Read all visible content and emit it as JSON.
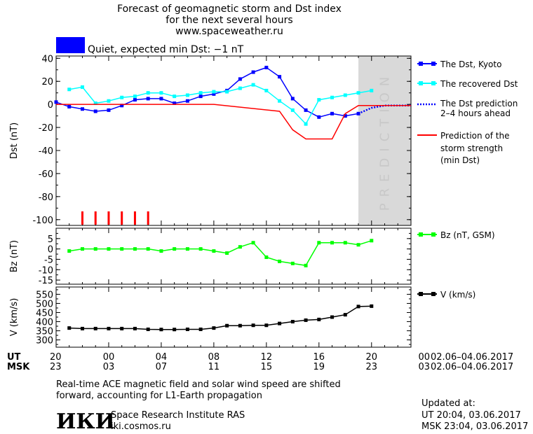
{
  "header": {
    "line1": "Forecast of geomagnetic storm and Dst index",
    "line2": "for the next several hours",
    "url": "www.spaceweather.ru"
  },
  "status": {
    "color": "#0000ff",
    "text": "Quiet, expected min Dst: −1 nT"
  },
  "colors": {
    "dst_kyoto": "#0000ff",
    "dst_recovered": "#00ffff",
    "prediction": "#ff0000",
    "bz": "#00ff00",
    "v": "#000000",
    "prediction_zone": "#d9d9d9"
  },
  "prediction_label": "PREDICTION",
  "chart_data": [
    {
      "type": "line",
      "ylabel": "Dst (nT)",
      "ylim": [
        -105,
        42
      ],
      "yticks": [
        40,
        20,
        0,
        -20,
        -40,
        -60,
        -80,
        -100
      ],
      "xlim": [
        20,
        47
      ],
      "prediction_zone_x": [
        43,
        47
      ],
      "series": [
        {
          "name": "The Dst, Kyoto",
          "color": "#0000ff",
          "x": [
            20,
            21,
            22,
            23,
            24,
            25,
            26,
            27,
            28,
            29,
            30,
            31,
            32,
            33,
            34,
            35,
            36,
            37,
            38,
            39,
            40,
            41,
            42,
            43
          ],
          "y": [
            2,
            -2,
            -4,
            -6,
            -5,
            -1,
            4,
            5,
            5,
            1,
            3,
            7,
            9,
            12,
            22,
            28,
            32,
            24,
            5,
            -5,
            -11,
            -8,
            -10,
            -8
          ]
        },
        {
          "name": "The recovered Dst",
          "color": "#00ffff",
          "x": [
            21,
            22,
            23,
            24,
            25,
            26,
            27,
            28,
            29,
            30,
            31,
            32,
            33,
            34,
            35,
            36,
            37,
            38,
            39,
            40,
            41,
            42,
            43,
            44
          ],
          "y": [
            13,
            15,
            1,
            3,
            6,
            7,
            10,
            10,
            7,
            8,
            10,
            11,
            11,
            14,
            17,
            12,
            3,
            -5,
            -17,
            4,
            6,
            8,
            10,
            12
          ]
        },
        {
          "name": "The Dst prediction 2-4 hours ahead",
          "color": "#0000ff",
          "dotted": true,
          "x": [
            43,
            44,
            45,
            46,
            47
          ],
          "y": [
            -8,
            -3,
            -1,
            -1,
            -1
          ]
        },
        {
          "name": "Prediction of the storm strength (min Dst)",
          "color": "#ff0000",
          "x": [
            20,
            32,
            37,
            38,
            39,
            40,
            41,
            42,
            43,
            47
          ],
          "y": [
            0,
            0,
            -6,
            -22,
            -30,
            -30,
            -30,
            -8,
            -1,
            -1
          ]
        }
      ],
      "red_bars_x": [
        22,
        23,
        24,
        25,
        26,
        27
      ],
      "legend": [
        {
          "label1": "The Dst, Kyoto",
          "label2": "",
          "label3": ""
        },
        {
          "label1": "The recovered Dst",
          "label2": "",
          "label3": ""
        },
        {
          "label1": "The Dst prediction",
          "label2": "2–4 hours ahead",
          "label3": ""
        },
        {
          "label1": "Prediction of the",
          "label2": "storm strength",
          "label3": "(min Dst)"
        }
      ]
    },
    {
      "type": "line",
      "ylabel": "Bz (nT)",
      "ylim": [
        -17,
        10
      ],
      "yticks": [
        5,
        0,
        -5,
        -10,
        -15
      ],
      "xlim": [
        20,
        47
      ],
      "series": [
        {
          "name": "Bz (nT, GSM)",
          "color": "#00ff00",
          "x": [
            21,
            22,
            23,
            24,
            25,
            26,
            27,
            28,
            29,
            30,
            31,
            32,
            33,
            34,
            35,
            36,
            37,
            38,
            39,
            40,
            41,
            42,
            43,
            44
          ],
          "y": [
            -1,
            0,
            0,
            0,
            0,
            0,
            0,
            -1,
            0,
            0,
            0,
            -1,
            -2,
            1,
            3,
            -4,
            -6,
            -7,
            -8,
            3,
            3,
            3,
            2,
            4
          ]
        }
      ],
      "legend_label": "Bz (nT, GSM)"
    },
    {
      "type": "line",
      "ylabel": "V (km/s)",
      "ylim": [
        260,
        590
      ],
      "yticks": [
        550,
        500,
        450,
        400,
        350,
        300
      ],
      "xlim": [
        20,
        47
      ],
      "series": [
        {
          "name": "V (km/s)",
          "color": "#000000",
          "x": [
            21,
            22,
            23,
            24,
            25,
            26,
            27,
            28,
            29,
            30,
            31,
            32,
            33,
            34,
            35,
            36,
            37,
            38,
            39,
            40,
            41,
            42,
            43,
            44
          ],
          "y": [
            365,
            362,
            362,
            362,
            362,
            362,
            358,
            357,
            357,
            358,
            358,
            365,
            378,
            378,
            380,
            380,
            390,
            400,
            408,
            412,
            425,
            438,
            483,
            485
          ]
        }
      ],
      "legend_label": "V (km/s)"
    }
  ],
  "time_axis": {
    "ut_label": "UT",
    "msk_label": "MSK",
    "ut_ticks": [
      "20",
      "00",
      "04",
      "08",
      "12",
      "16",
      "20",
      "00"
    ],
    "msk_ticks": [
      "23",
      "03",
      "07",
      "11",
      "15",
      "19",
      "23",
      "03"
    ],
    "date_range_ut": "02.06–04.06.2017",
    "date_range_msk": "02.06–04.06.2017"
  },
  "footer": {
    "note1": "Real-time ACE magnetic field and solar wind speed are shifted",
    "note2": "forward, accounting for L1-Earth propagation",
    "logo": "ИКИ",
    "institute": "Space Research Institute RAS",
    "site": "iki.cosmos.ru",
    "updated_label": "Updated at:",
    "updated_ut": "UT  20:04, 03.06.2017",
    "updated_msk": "MSK 23:04, 03.06.2017"
  }
}
